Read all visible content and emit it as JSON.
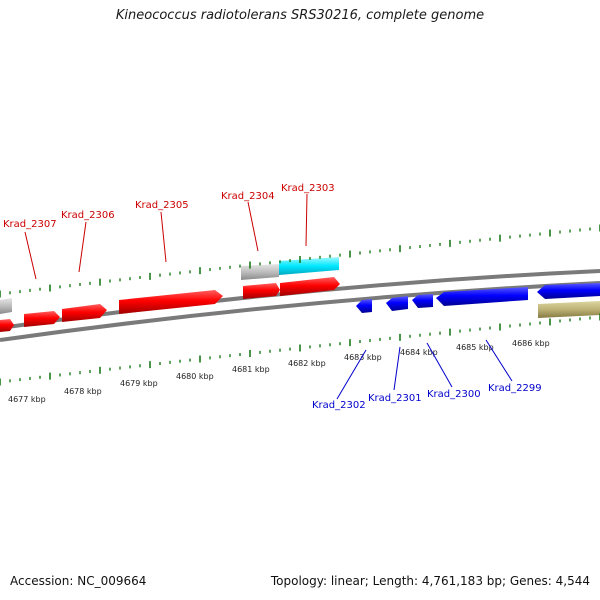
{
  "title": "Kineococcus radiotolerans SRS30216, complete genome",
  "footer": {
    "accession": "Accession: NC_009664",
    "topology": "Topology: linear; Length: 4,761,183 bp; Genes: 4,544"
  },
  "colors": {
    "forward_gene": "#ff0000",
    "reverse_gene": "#0000ff",
    "cyan_feature": "#00e8ff",
    "gray_feature": "#b8b8b8",
    "olive_feature": "#b8b070",
    "backbone": "#888888",
    "tick": "#1a7a1a",
    "forward_label": "#cc0000",
    "reverse_label": "#0000cc"
  },
  "scale_labels": [
    "4677 kbp",
    "4678 kbp",
    "4679 kbp",
    "4680 kbp",
    "4681 kbp",
    "4682 kbp",
    "4683 kbp",
    "4684 kbp",
    "4685 kbp",
    "4686 kbp"
  ],
  "forward_labels": [
    "Krad_2307",
    "Krad_2306",
    "Krad_2305",
    "Krad_2304",
    "Krad_2303"
  ],
  "reverse_labels": [
    "Krad_2302",
    "Krad_2301",
    "Krad_2300",
    "Krad_2299"
  ]
}
